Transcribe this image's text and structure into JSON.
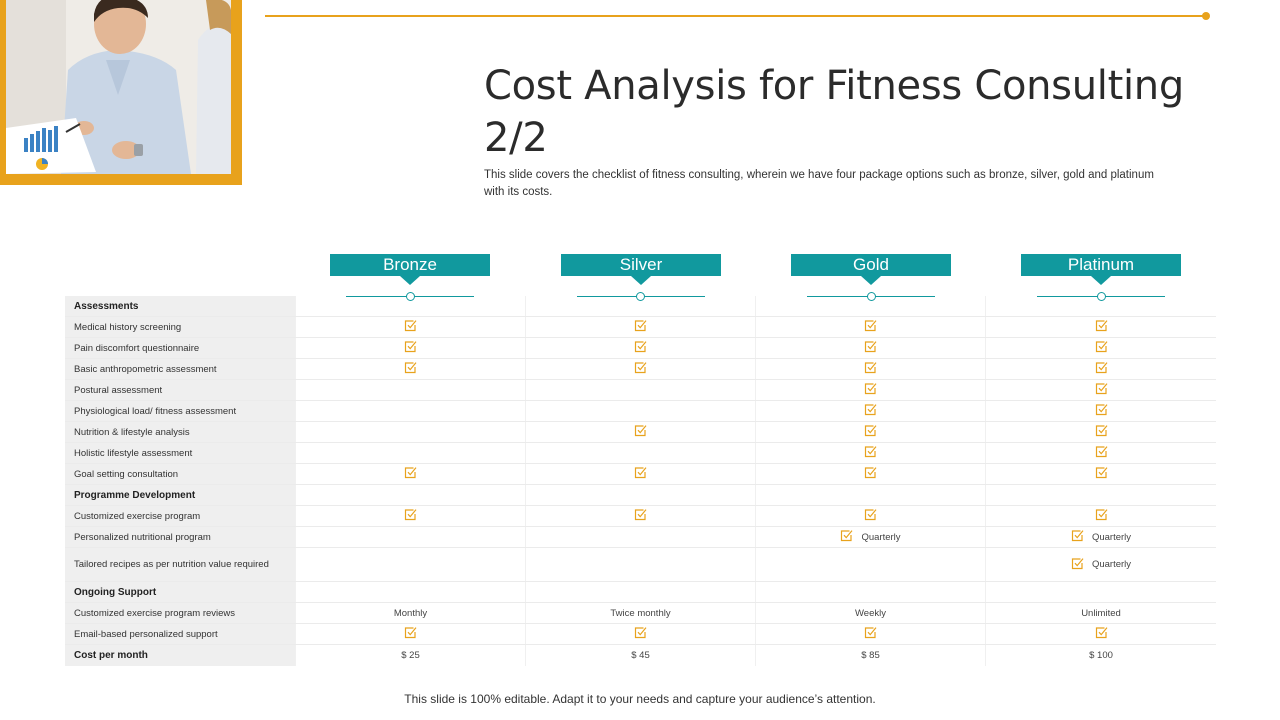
{
  "title": "Cost Analysis for Fitness Consulting 2/2",
  "subtitle": "This slide covers the checklist of fitness consulting, wherein we  have four package options such as bronze, silver, gold and platinum with its costs.",
  "packages": [
    "Bronze",
    "Silver",
    "Gold",
    "Platinum"
  ],
  "colors": {
    "accent": "#e8a21c",
    "teal": "#11999e",
    "label_bg": "#efefef"
  },
  "check_icon": "checkbox-check-icon",
  "rows": [
    {
      "label": "Assessments",
      "section": true,
      "cells": [
        "",
        "",
        "",
        ""
      ]
    },
    {
      "label": "Medical history screening",
      "cells": [
        "check",
        "check",
        "check",
        "check"
      ]
    },
    {
      "label": "Pain discomfort questionnaire",
      "cells": [
        "check",
        "check",
        "check",
        "check"
      ]
    },
    {
      "label": "Basic anthropometric assessment",
      "cells": [
        "check",
        "check",
        "check",
        "check"
      ]
    },
    {
      "label": "Postural assessment",
      "cells": [
        "",
        "",
        "check",
        "check"
      ]
    },
    {
      "label": "Physiological load/ fitness assessment",
      "cells": [
        "",
        "",
        "check",
        "check"
      ]
    },
    {
      "label": "Nutrition & lifestyle analysis",
      "cells": [
        "",
        "check",
        "check",
        "check"
      ]
    },
    {
      "label": "Holistic lifestyle assessment",
      "cells": [
        "",
        "",
        "check",
        "check"
      ]
    },
    {
      "label": "Goal setting consultation",
      "cells": [
        "check",
        "check",
        "check",
        "check"
      ]
    },
    {
      "label": "Programme Development",
      "section": true,
      "cells": [
        "",
        "",
        "",
        ""
      ]
    },
    {
      "label": "Customized exercise program",
      "cells": [
        "check",
        "check",
        "check",
        "check"
      ]
    },
    {
      "label": "Personalized nutritional program",
      "cells": [
        "",
        "",
        "check:Quarterly",
        "check:Quarterly"
      ]
    },
    {
      "label": "Tailored recipes as per nutrition value required",
      "tall": true,
      "cells": [
        "",
        "",
        "",
        "check:Quarterly"
      ]
    },
    {
      "label": "Ongoing Support",
      "section": true,
      "cells": [
        "",
        "",
        "",
        ""
      ]
    },
    {
      "label": "Customized exercise program reviews",
      "cells": [
        "Monthly",
        "Twice monthly",
        "Weekly",
        "Unlimited"
      ]
    },
    {
      "label": "Email-based personalized support",
      "cells": [
        "check",
        "check",
        "check",
        "check"
      ]
    },
    {
      "label": "Cost per month",
      "section": true,
      "cells": [
        "$ 25",
        "$ 45",
        "$ 85",
        "$ 100"
      ]
    }
  ],
  "footer": "This slide is 100% editable. Adapt it to your needs and capture your audience’s attention."
}
